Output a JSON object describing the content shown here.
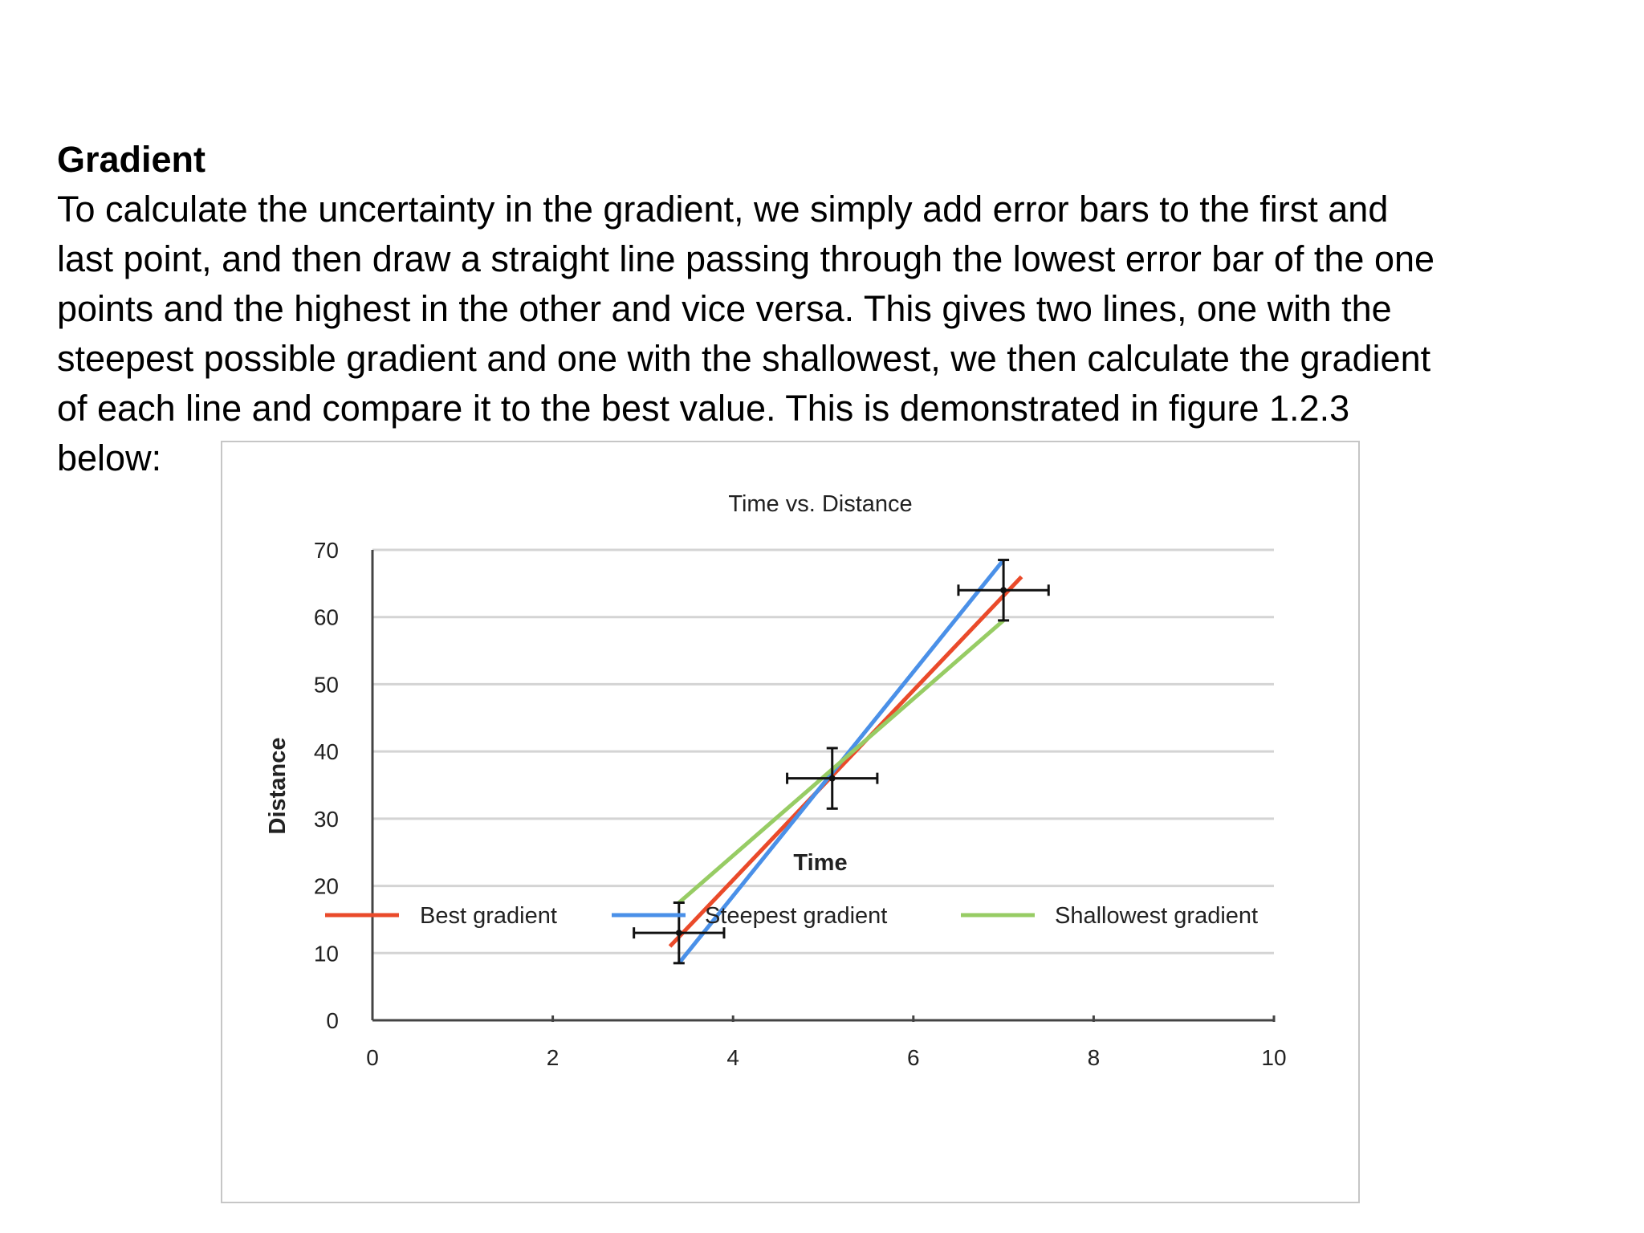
{
  "document": {
    "heading": "Gradient",
    "lines": [
      "To calculate the uncertainty in the gradient, we simply add error bars to the first and",
      "last point, and then draw a straight line passing through the lowest error bar of the one",
      "points and the highest in the other and vice versa. This gives two lines, one with the",
      "steepest possible gradient and one with the shallowest, we then calculate the gradient",
      "of each line and compare it to the best value. This is demonstrated in figure 1.2.3",
      "below:"
    ]
  },
  "chart_data": {
    "type": "line",
    "title": "Time vs. Distance",
    "xlabel": "Time",
    "ylabel": "Distance",
    "xlim": [
      0,
      10
    ],
    "ylim": [
      0,
      70
    ],
    "xticks": [
      0,
      2,
      4,
      6,
      8,
      10
    ],
    "yticks": [
      0,
      10,
      20,
      30,
      40,
      50,
      60,
      70
    ],
    "grid": true,
    "legend_position": "bottom",
    "points": [
      {
        "x": 3.4,
        "y": 13,
        "xerr": 0.5,
        "yerr": 4.5
      },
      {
        "x": 5.1,
        "y": 36,
        "xerr": 0.5,
        "yerr": 4.5
      },
      {
        "x": 7.0,
        "y": 64,
        "xerr": 0.5,
        "yerr": 4.5
      }
    ],
    "series": [
      {
        "name": "Best gradient",
        "color": "#ea4a2a",
        "x": [
          3.3,
          7.2
        ],
        "y": [
          11,
          66
        ]
      },
      {
        "name": "Steepest gradient",
        "color": "#4a90e8",
        "x": [
          3.4,
          7.0
        ],
        "y": [
          8.5,
          68.5
        ]
      },
      {
        "name": "Shallowest gradient",
        "color": "#97cc64",
        "x": [
          3.4,
          7.0
        ],
        "y": [
          17.5,
          59.5
        ]
      }
    ]
  }
}
